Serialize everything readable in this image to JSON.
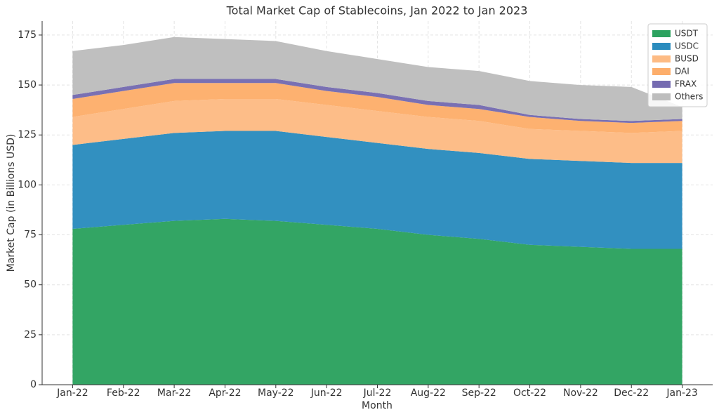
{
  "chart_data": {
    "type": "stacked_area",
    "title": "Total Market Cap of Stablecoins, Jan 2022 to Jan 2023",
    "x_label": "Month",
    "y_label": "Market Cap (in Billions USD)",
    "categories": [
      "Jan-22",
      "Feb-22",
      "Mar-22",
      "Apr-22",
      "May-22",
      "Jun-22",
      "Jul-22",
      "Aug-22",
      "Sep-22",
      "Oct-22",
      "Nov-22",
      "Dec-22",
      "Jan-23"
    ],
    "series": [
      {
        "name": "USDT",
        "color": "#2ca25f",
        "values": [
          78,
          80,
          82,
          83,
          82,
          80,
          78,
          75,
          73,
          70,
          69,
          68,
          68
        ]
      },
      {
        "name": "USDC",
        "color": "#2b8cbe",
        "values": [
          42,
          43,
          44,
          44,
          45,
          44,
          43,
          43,
          43,
          43,
          43,
          43,
          43
        ]
      },
      {
        "name": "BUSD",
        "color": "#fdbb84",
        "values": [
          14,
          15,
          16,
          16,
          16,
          16,
          16,
          16,
          16,
          15,
          15,
          15,
          16
        ]
      },
      {
        "name": "DAI",
        "color": "#fdae6b",
        "values": [
          9,
          9,
          9,
          8,
          8,
          7,
          7,
          6,
          6,
          6,
          5,
          5,
          5
        ]
      },
      {
        "name": "FRAX",
        "color": "#756bb1",
        "values": [
          2,
          2,
          2,
          2,
          2,
          2,
          2,
          2,
          2,
          1,
          1,
          1,
          1
        ]
      },
      {
        "name": "Others",
        "color": "#bdbdbd",
        "values": [
          22,
          21,
          21,
          20,
          19,
          18,
          17,
          17,
          17,
          17,
          17,
          17,
          6
        ]
      }
    ],
    "ylim": [
      0,
      182
    ],
    "yticks": [
      0,
      25,
      50,
      75,
      100,
      125,
      150,
      175
    ],
    "grid": true,
    "legend": "upper right"
  }
}
